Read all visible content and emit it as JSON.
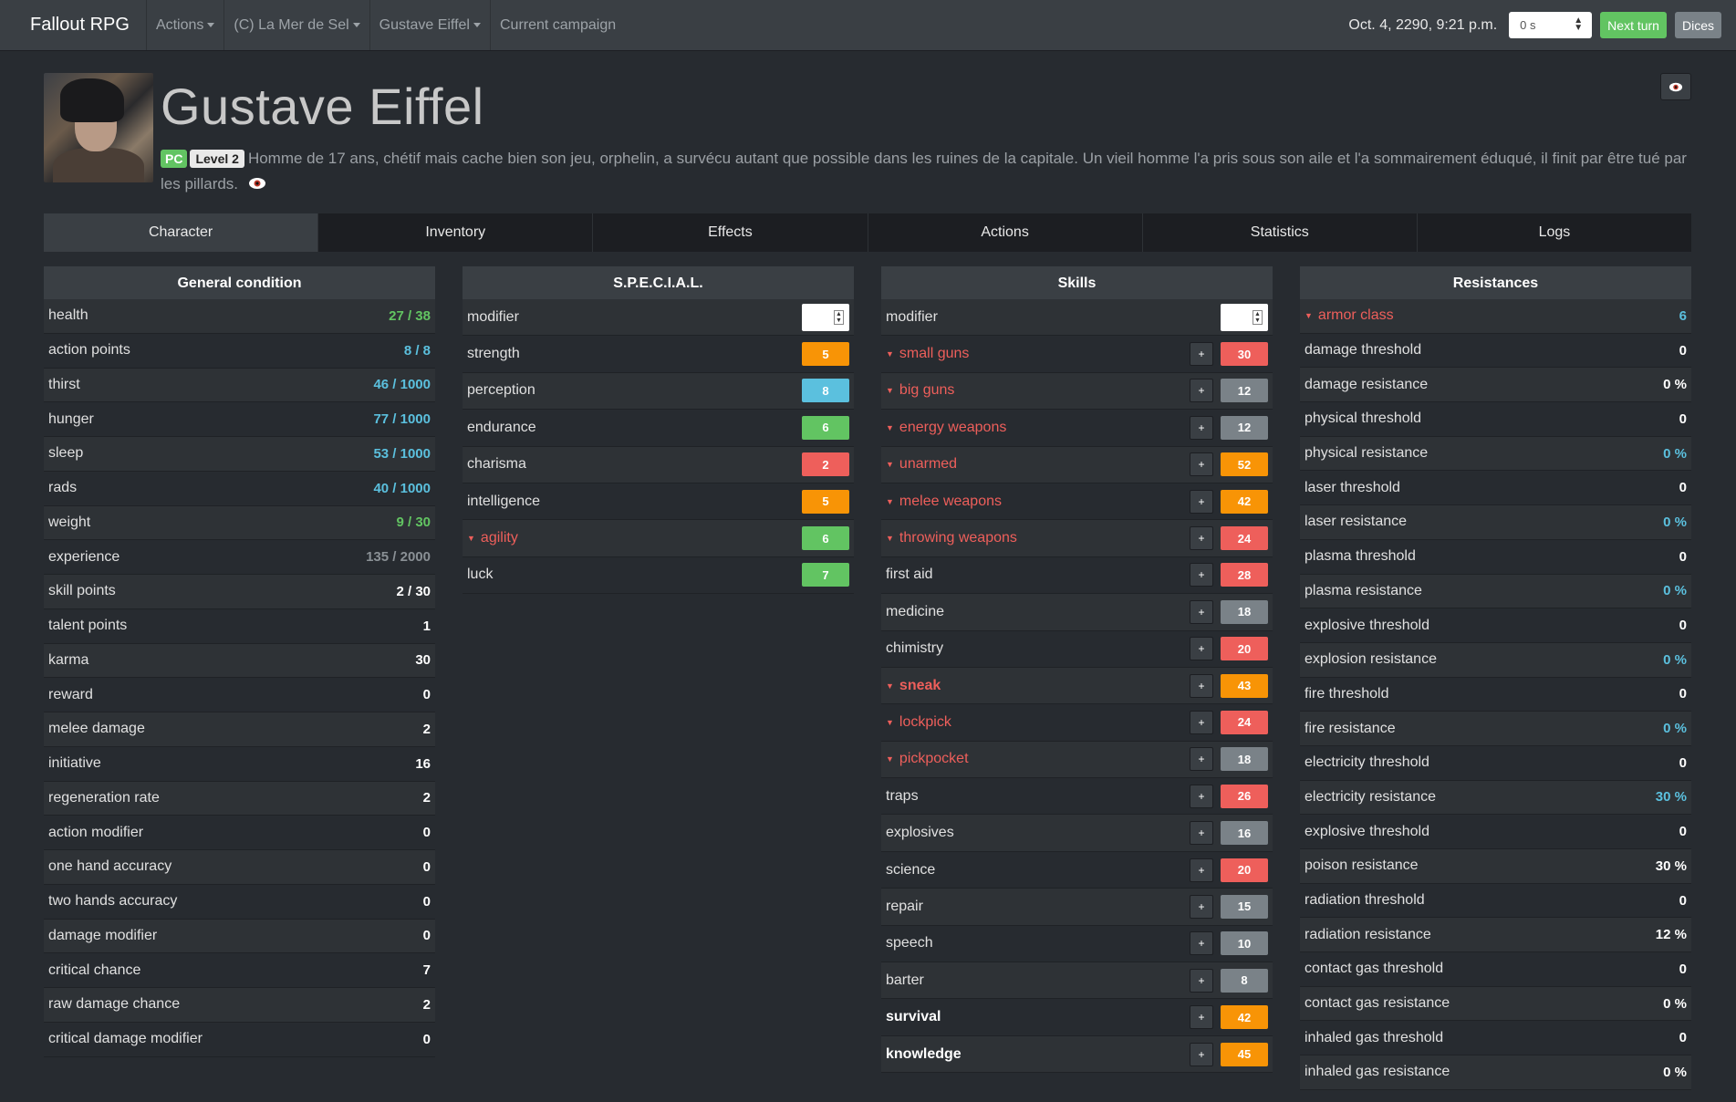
{
  "navbar": {
    "brand": "Fallout RPG",
    "menus": [
      {
        "label": "Actions",
        "dropdown": true
      },
      {
        "label": "(C) La Mer de Sel",
        "dropdown": true
      },
      {
        "label": "Gustave Eiffel",
        "dropdown": true
      },
      {
        "label": "Current campaign",
        "dropdown": false
      }
    ],
    "datetime": "Oct. 4, 2290, 9:21 p.m.",
    "time_step": "0 s",
    "next_turn": "Next turn",
    "dices": "Dices"
  },
  "character": {
    "name": "Gustave Eiffel",
    "badge_pc": "PC",
    "badge_level": "Level 2",
    "description": "Homme de 17 ans, chétif mais cache bien son jeu, orphelin, a survécu autant que possible dans les ruines de la capitale. Un vieil homme l'a pris sous son aile et l'a sommairement éduqué, il finit par être tué par les pillards."
  },
  "tabs": [
    "Character",
    "Inventory",
    "Effects",
    "Actions",
    "Statistics",
    "Logs"
  ],
  "active_tab": 0,
  "general": {
    "title": "General condition",
    "rows": [
      {
        "label": "health",
        "value": "27 / 38",
        "color": "green"
      },
      {
        "label": "action points",
        "value": "8 / 8",
        "color": "blue"
      },
      {
        "label": "thirst",
        "value": "46 / 1000",
        "color": "blue"
      },
      {
        "label": "hunger",
        "value": "77 / 1000",
        "color": "blue"
      },
      {
        "label": "sleep",
        "value": "53 / 1000",
        "color": "blue"
      },
      {
        "label": "rads",
        "value": "40 / 1000",
        "color": "blue"
      },
      {
        "label": "weight",
        "value": "9 / 30",
        "color": "green"
      },
      {
        "label": "experience",
        "value": "135 / 2000",
        "color": "gray"
      },
      {
        "label": "skill points",
        "value": "2 / 30",
        "color": "white"
      },
      {
        "label": "talent points",
        "value": "1",
        "color": "white"
      },
      {
        "label": "karma",
        "value": "30",
        "color": "white"
      },
      {
        "label": "reward",
        "value": "0",
        "color": "white"
      },
      {
        "label": "melee damage",
        "value": "2",
        "color": "white"
      },
      {
        "label": "initiative",
        "value": "16",
        "color": "white"
      },
      {
        "label": "regeneration rate",
        "value": "2",
        "color": "white"
      },
      {
        "label": "action modifier",
        "value": "0",
        "color": "white"
      },
      {
        "label": "one hand accuracy",
        "value": "0",
        "color": "white"
      },
      {
        "label": "two hands accuracy",
        "value": "0",
        "color": "white"
      },
      {
        "label": "damage modifier",
        "value": "0",
        "color": "white"
      },
      {
        "label": "critical chance",
        "value": "7",
        "color": "white"
      },
      {
        "label": "raw damage chance",
        "value": "2",
        "color": "white"
      },
      {
        "label": "critical damage modifier",
        "value": "0",
        "color": "white"
      }
    ]
  },
  "special": {
    "title": "S.P.E.C.I.A.L.",
    "modifier_label": "modifier",
    "rows": [
      {
        "label": "strength",
        "value": "5",
        "color": "orange",
        "red": false
      },
      {
        "label": "perception",
        "value": "8",
        "color": "blue",
        "red": false
      },
      {
        "label": "endurance",
        "value": "6",
        "color": "green",
        "red": false
      },
      {
        "label": "charisma",
        "value": "2",
        "color": "red",
        "red": false
      },
      {
        "label": "intelligence",
        "value": "5",
        "color": "orange",
        "red": false
      },
      {
        "label": "agility",
        "value": "6",
        "color": "green",
        "red": true
      },
      {
        "label": "luck",
        "value": "7",
        "color": "green",
        "red": false
      }
    ]
  },
  "skills": {
    "title": "Skills",
    "modifier_label": "modifier",
    "plus": "+",
    "rows": [
      {
        "label": "small guns",
        "value": "30",
        "color": "red",
        "style": "red"
      },
      {
        "label": "big guns",
        "value": "12",
        "color": "gray",
        "style": "red"
      },
      {
        "label": "energy weapons",
        "value": "12",
        "color": "gray",
        "style": "red"
      },
      {
        "label": "unarmed",
        "value": "52",
        "color": "orange",
        "style": "red"
      },
      {
        "label": "melee weapons",
        "value": "42",
        "color": "orange",
        "style": "red"
      },
      {
        "label": "throwing weapons",
        "value": "24",
        "color": "red",
        "style": "red"
      },
      {
        "label": "first aid",
        "value": "28",
        "color": "red",
        "style": "normal"
      },
      {
        "label": "medicine",
        "value": "18",
        "color": "gray",
        "style": "normal"
      },
      {
        "label": "chimistry",
        "value": "20",
        "color": "red",
        "style": "normal"
      },
      {
        "label": "sneak",
        "value": "43",
        "color": "orange",
        "style": "red-bold"
      },
      {
        "label": "lockpick",
        "value": "24",
        "color": "red",
        "style": "red"
      },
      {
        "label": "pickpocket",
        "value": "18",
        "color": "gray",
        "style": "red"
      },
      {
        "label": "traps",
        "value": "26",
        "color": "red",
        "style": "normal"
      },
      {
        "label": "explosives",
        "value": "16",
        "color": "gray",
        "style": "normal"
      },
      {
        "label": "science",
        "value": "20",
        "color": "red",
        "style": "normal"
      },
      {
        "label": "repair",
        "value": "15",
        "color": "gray",
        "style": "normal"
      },
      {
        "label": "speech",
        "value": "10",
        "color": "gray",
        "style": "normal"
      },
      {
        "label": "barter",
        "value": "8",
        "color": "gray",
        "style": "normal"
      },
      {
        "label": "survival",
        "value": "42",
        "color": "orange",
        "style": "bold"
      },
      {
        "label": "knowledge",
        "value": "45",
        "color": "orange",
        "style": "bold"
      }
    ]
  },
  "resistances": {
    "title": "Resistances",
    "rows": [
      {
        "label": "armor class",
        "value": "6",
        "color": "blue",
        "red": true
      },
      {
        "label": "damage threshold",
        "value": "0",
        "color": "white",
        "red": false
      },
      {
        "label": "damage resistance",
        "value": "0 %",
        "color": "white",
        "red": false
      },
      {
        "label": "physical threshold",
        "value": "0",
        "color": "white",
        "red": false
      },
      {
        "label": "physical resistance",
        "value": "0 %",
        "color": "blue",
        "red": false
      },
      {
        "label": "laser threshold",
        "value": "0",
        "color": "white",
        "red": false
      },
      {
        "label": "laser resistance",
        "value": "0 %",
        "color": "blue",
        "red": false
      },
      {
        "label": "plasma threshold",
        "value": "0",
        "color": "white",
        "red": false
      },
      {
        "label": "plasma resistance",
        "value": "0 %",
        "color": "blue",
        "red": false
      },
      {
        "label": "explosive threshold",
        "value": "0",
        "color": "white",
        "red": false
      },
      {
        "label": "explosion resistance",
        "value": "0 %",
        "color": "blue",
        "red": false
      },
      {
        "label": "fire threshold",
        "value": "0",
        "color": "white",
        "red": false
      },
      {
        "label": "fire resistance",
        "value": "0 %",
        "color": "blue",
        "red": false
      },
      {
        "label": "electricity threshold",
        "value": "0",
        "color": "white",
        "red": false
      },
      {
        "label": "electricity resistance",
        "value": "30 %",
        "color": "blue",
        "red": false
      },
      {
        "label": "explosive threshold",
        "value": "0",
        "color": "white",
        "red": false
      },
      {
        "label": "poison resistance",
        "value": "30 %",
        "color": "white",
        "red": false
      },
      {
        "label": "radiation threshold",
        "value": "0",
        "color": "white",
        "red": false
      },
      {
        "label": "radiation resistance",
        "value": "12 %",
        "color": "white",
        "red": false
      },
      {
        "label": "contact gas threshold",
        "value": "0",
        "color": "white",
        "red": false
      },
      {
        "label": "contact gas resistance",
        "value": "0 %",
        "color": "white",
        "red": false
      },
      {
        "label": "inhaled gas threshold",
        "value": "0",
        "color": "white",
        "red": false
      },
      {
        "label": "inhaled gas resistance",
        "value": "0 %",
        "color": "white",
        "red": false
      }
    ]
  }
}
